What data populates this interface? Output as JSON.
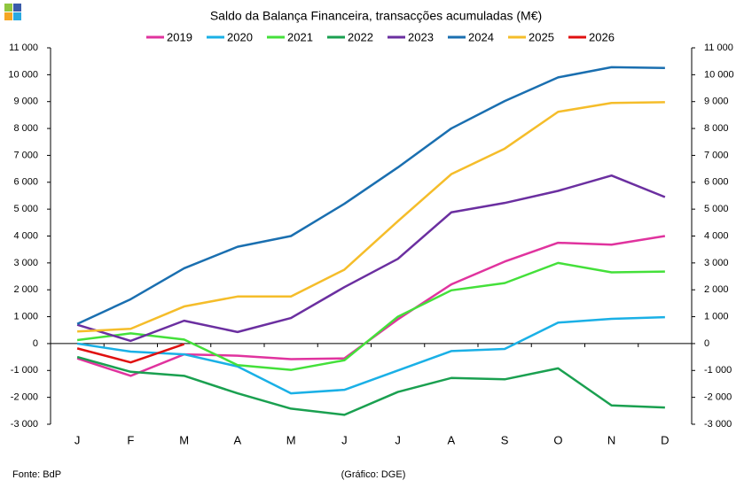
{
  "chart_data": {
    "type": "line",
    "title": "Saldo da Balança Financeira, transacções acumuladas (M€)",
    "categories": [
      "J",
      "F",
      "M",
      "A",
      "M",
      "J",
      "J",
      "A",
      "S",
      "O",
      "N",
      "D"
    ],
    "series": [
      {
        "name": "2019",
        "color": "#e0339e",
        "values": [
          -550,
          -1200,
          -400,
          -450,
          -580,
          -550,
          900,
          2200,
          3050,
          3750,
          3680,
          4000
        ]
      },
      {
        "name": "2020",
        "color": "#1ab0e6",
        "values": [
          0,
          -300,
          -400,
          -850,
          -1850,
          -1720,
          -1000,
          -280,
          -200,
          780,
          920,
          980
        ]
      },
      {
        "name": "2021",
        "color": "#44e03a",
        "values": [
          130,
          380,
          150,
          -800,
          -980,
          -620,
          1000,
          1980,
          2250,
          3000,
          2650,
          2680
        ]
      },
      {
        "name": "2022",
        "color": "#1aa050",
        "values": [
          -500,
          -1050,
          -1200,
          -1850,
          -2420,
          -2650,
          -1800,
          -1280,
          -1330,
          -920,
          -2300,
          -2380
        ]
      },
      {
        "name": "2023",
        "color": "#6b2fa0",
        "values": [
          700,
          100,
          850,
          430,
          950,
          2100,
          3150,
          4880,
          5230,
          5680,
          6250,
          5450
        ]
      },
      {
        "name": "2024",
        "color": "#1a6fb0",
        "values": [
          730,
          1650,
          2800,
          3600,
          4000,
          5200,
          6550,
          8000,
          9020,
          9900,
          10280,
          10250
        ]
      },
      {
        "name": "2025",
        "color": "#f5bd2a",
        "values": [
          450,
          550,
          1380,
          1750,
          1750,
          2750,
          4550,
          6300,
          7250,
          8620,
          8950,
          8980
        ]
      },
      {
        "name": "2026",
        "color": "#e01010",
        "values": [
          -180,
          -700,
          -20,
          null,
          null,
          null,
          null,
          null,
          null,
          null,
          null,
          null
        ]
      }
    ],
    "ylim": [
      -3000,
      11000
    ],
    "yticks": [
      {
        "value": -3000,
        "label": "-3 000"
      },
      {
        "value": -2000,
        "label": "-2 000"
      },
      {
        "value": -1000,
        "label": "-1 000"
      },
      0,
      {
        "value": 1000,
        "label": "1 000"
      },
      {
        "value": 2000,
        "label": "2 000"
      },
      {
        "value": 3000,
        "label": "3 000"
      },
      {
        "value": 4000,
        "label": "4 000"
      },
      {
        "value": 5000,
        "label": "5 000"
      },
      {
        "value": 6000,
        "label": "6 000"
      },
      {
        "value": 7000,
        "label": "7 000"
      },
      {
        "value": 8000,
        "label": "8 000"
      },
      {
        "value": 9000,
        "label": "9 000"
      },
      {
        "value": 10000,
        "label": "10 000"
      },
      {
        "value": 11000,
        "label": "11 000"
      }
    ],
    "y2lim": [
      -3000,
      11000
    ],
    "y2ticks": [
      {
        "value": -3000,
        "label": "-3 000"
      },
      {
        "value": -2000,
        "label": "-2 000"
      },
      {
        "value": -1000,
        "label": "-1 000"
      },
      0,
      {
        "value": 1000,
        "label": "1 000"
      },
      {
        "value": 2000,
        "label": "2 000"
      },
      {
        "value": 3000,
        "label": "3 000"
      },
      {
        "value": 4000,
        "label": "4 000"
      },
      {
        "value": 5000,
        "label": "5 000"
      },
      {
        "value": 6000,
        "label": "6 000"
      },
      {
        "value": 7000,
        "label": "7 000"
      },
      {
        "value": 8000,
        "label": "8 000"
      },
      {
        "value": 9000,
        "label": "9 000"
      },
      {
        "value": 10000,
        "label": "10 000"
      },
      {
        "value": 11000,
        "label": "11 000"
      }
    ],
    "legend": "top",
    "source": "Fonte: BdP",
    "credit": "(Gráfico: DGE)"
  }
}
